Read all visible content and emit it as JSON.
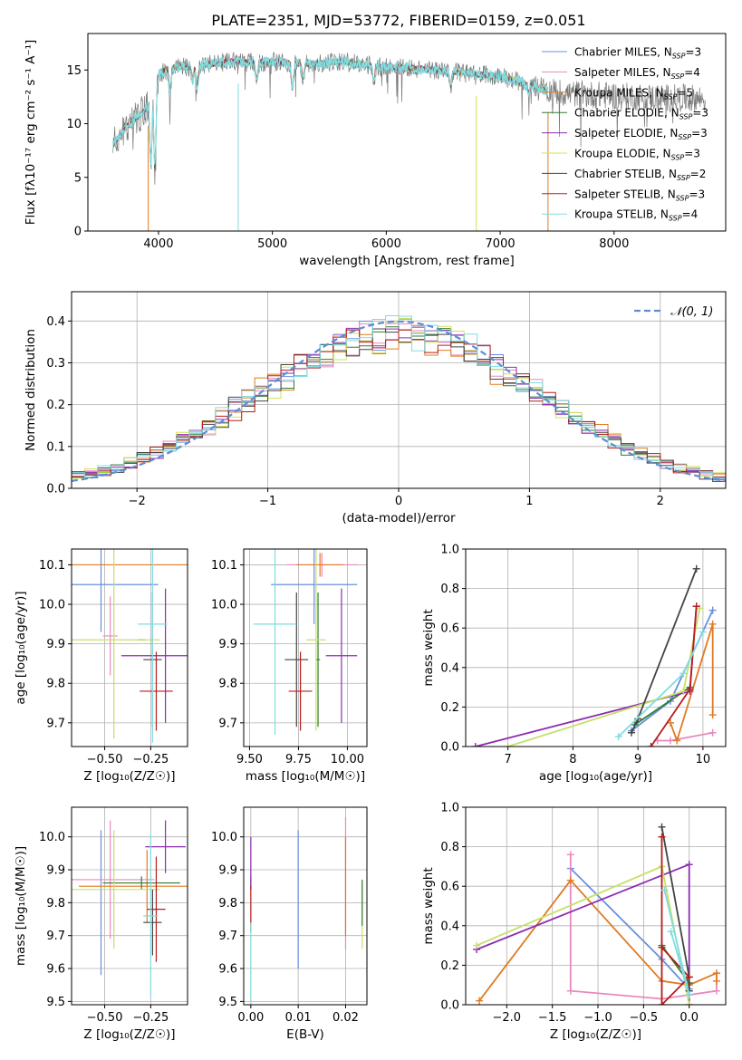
{
  "figure": {
    "title": "PLATE=2351, MJD=53772, FIBERID=0159, z=0.051"
  },
  "models": [
    {
      "name": "Chabrier MILES",
      "nssp": "3",
      "color": "#6a8fde"
    },
    {
      "name": "Salpeter MILES",
      "nssp": "4",
      "color": "#e889bf"
    },
    {
      "name": "Kroupa MILES",
      "nssp": "5",
      "color": "#e07b22"
    },
    {
      "name": "Chabrier ELODIE",
      "nssp": "3",
      "color": "#2e7d32"
    },
    {
      "name": "Salpeter ELODIE",
      "nssp": "3",
      "color": "#8e2bb0"
    },
    {
      "name": "Kroupa ELODIE",
      "nssp": "3",
      "color": "#d4e157"
    },
    {
      "name": "Chabrier STELIB",
      "nssp": "2",
      "color": "#444444"
    },
    {
      "name": "Salpeter STELIB",
      "nssp": "3",
      "color": "#b71c1c"
    },
    {
      "name": "Kroupa STELIB",
      "nssp": "4",
      "color": "#7fdde0"
    }
  ],
  "chart_data": [
    {
      "type": "line",
      "id": "spectrum",
      "title": "PLATE=2351, MJD=53772, FIBERID=0159, z=0.051",
      "xlabel": "wavelength [Angstrom, rest frame]",
      "ylabel": "Flux [fλ10⁻¹⁷ erg cm⁻² s⁻¹ A⁻¹]",
      "xlim": [
        3380,
        8980
      ],
      "ylim": [
        0,
        18.4
      ],
      "xticks": [
        4000,
        5000,
        6000,
        7000,
        8000
      ],
      "yticks": [
        0,
        5,
        10,
        15
      ],
      "legend": "top-right",
      "grid": false,
      "data_color": "#7a7a7a",
      "model_color": "#7fdde0",
      "continuum": [
        [
          3600,
          8.0
        ],
        [
          3700,
          9.5
        ],
        [
          3800,
          10.5
        ],
        [
          3900,
          11.5
        ],
        [
          3950,
          13.0
        ],
        [
          4000,
          14.6
        ],
        [
          4100,
          15.2
        ],
        [
          4200,
          15.3
        ],
        [
          4300,
          15.2
        ],
        [
          4400,
          15.5
        ],
        [
          4500,
          15.6
        ],
        [
          4600,
          15.8
        ],
        [
          4800,
          15.7
        ],
        [
          5000,
          15.8
        ],
        [
          5200,
          15.6
        ],
        [
          5400,
          15.6
        ],
        [
          5600,
          15.8
        ],
        [
          5800,
          15.5
        ],
        [
          6000,
          15.3
        ],
        [
          6200,
          15.2
        ],
        [
          6400,
          15.0
        ],
        [
          6600,
          14.8
        ],
        [
          6800,
          14.6
        ],
        [
          7000,
          14.4
        ],
        [
          7200,
          13.8
        ],
        [
          7400,
          13.1
        ],
        [
          7600,
          12.8
        ],
        [
          7800,
          12.7
        ],
        [
          8000,
          12.6
        ],
        [
          8200,
          12.5
        ],
        [
          8400,
          12.4
        ],
        [
          8600,
          12.4
        ],
        [
          8800,
          12.3
        ]
      ],
      "absorption": [
        [
          3933,
          6.0
        ],
        [
          3968,
          5.5
        ],
        [
          4101,
          13.0
        ],
        [
          4300,
          14.0
        ],
        [
          4340,
          13.5
        ],
        [
          4861,
          14.0
        ],
        [
          5175,
          13.3
        ],
        [
          5270,
          14.3
        ],
        [
          5890,
          13.8
        ],
        [
          6563,
          13.5
        ],
        [
          7250,
          12.8
        ]
      ],
      "model_cutoff": 7420,
      "spikes": [
        [
          3910,
          0
        ],
        [
          4700,
          0
        ],
        [
          6790,
          0
        ],
        [
          7420,
          0
        ]
      ]
    },
    {
      "type": "histogram",
      "id": "residuals",
      "xlabel": "(data-model)/error",
      "ylabel": "Normed distribution",
      "xlim": [
        -2.5,
        2.5
      ],
      "ylim": [
        0,
        0.47
      ],
      "xticks": [
        -2,
        -1,
        0,
        1,
        2
      ],
      "yticks": [
        0.0,
        0.1,
        0.2,
        0.3,
        0.4
      ],
      "bin_width": 0.1,
      "grid": true,
      "legend": "top-right",
      "gaussian": {
        "label": "𝒩(0, 1)",
        "color": "#5b8ed6",
        "mean": 0,
        "sigma": 1
      }
    },
    {
      "type": "scatter",
      "id": "age-vs-Z",
      "xlabel": "Z [log₁₀(Z/Z☉)]",
      "ylabel": "age  [log₁₀(age/yr)]",
      "xlim": [
        -0.68,
        -0.05
      ],
      "ylim": [
        9.64,
        10.14
      ],
      "xticks": [
        -0.5,
        -0.25
      ],
      "yticks": [
        9.7,
        9.8,
        9.9,
        10.0,
        10.1
      ],
      "grid": true,
      "points": [
        {
          "x": -0.52,
          "y": 10.05,
          "xerr": 0.31,
          "yerr": 0.12,
          "color": "#6a8fde"
        },
        {
          "x": -0.47,
          "y": 9.92,
          "xerr": 0.04,
          "yerr": 0.1,
          "color": "#e889bf"
        },
        {
          "x": -0.45,
          "y": 10.1,
          "xerr": 0.42,
          "yerr": 0.0,
          "color": "#e07b22"
        },
        {
          "x": -0.3,
          "y": 9.91,
          "xerr": 0.02,
          "yerr": 0.0,
          "color": "#2e7d32"
        },
        {
          "x": -0.17,
          "y": 9.87,
          "xerr": 0.24,
          "yerr": 0.17,
          "color": "#8e2bb0"
        },
        {
          "x": -0.45,
          "y": 9.91,
          "xerr": 0.25,
          "yerr": 0.25,
          "color": "#c6e06a"
        },
        {
          "x": -0.24,
          "y": 9.86,
          "xerr": 0.05,
          "yerr": 0.17,
          "color": "#444444"
        },
        {
          "x": -0.22,
          "y": 9.78,
          "xerr": 0.09,
          "yerr": 0.1,
          "color": "#b71c1c"
        },
        {
          "x": -0.24,
          "y": 9.95,
          "xerr": 0.08,
          "yerr": 0.3,
          "color": "#7fdde0"
        }
      ]
    },
    {
      "type": "scatter",
      "id": "age-vs-mass",
      "xlabel": "mass [log₁₀(M/M☉)]",
      "ylabel": "",
      "xlim": [
        9.47,
        10.1
      ],
      "ylim": [
        9.64,
        10.14
      ],
      "xticks": [
        9.5,
        9.75,
        10.0
      ],
      "yticks": [
        9.7,
        9.8,
        9.9,
        10.0,
        10.1
      ],
      "grid": true,
      "points": [
        {
          "x": 9.83,
          "y": 10.05,
          "xerr": 0.22,
          "yerr": 0.1,
          "color": "#6a8fde"
        },
        {
          "x": 9.87,
          "y": 10.1,
          "xerr": 0.18,
          "yerr": 0.03,
          "color": "#e889bf"
        },
        {
          "x": 9.86,
          "y": 10.1,
          "xerr": 0.12,
          "yerr": 0.03,
          "color": "#e07b22"
        },
        {
          "x": 9.85,
          "y": 9.86,
          "xerr": 0.01,
          "yerr": 0.17,
          "color": "#2e7d32"
        },
        {
          "x": 9.97,
          "y": 9.87,
          "xerr": 0.08,
          "yerr": 0.17,
          "color": "#8e2bb0"
        },
        {
          "x": 9.84,
          "y": 9.91,
          "xerr": 0.05,
          "yerr": 0.23,
          "color": "#c6e06a"
        },
        {
          "x": 9.74,
          "y": 9.86,
          "xerr": 0.06,
          "yerr": 0.17,
          "color": "#444444"
        },
        {
          "x": 9.76,
          "y": 9.78,
          "xerr": 0.06,
          "yerr": 0.1,
          "color": "#b71c1c"
        },
        {
          "x": 9.63,
          "y": 9.95,
          "xerr": 0.11,
          "yerr": 0.28,
          "color": "#7fdde0"
        }
      ]
    },
    {
      "type": "line",
      "id": "massweight-vs-age",
      "xlabel": "age  [log₁₀(age/yr)]",
      "ylabel": "mass weight",
      "xlim": [
        6.35,
        10.35
      ],
      "ylim": [
        0,
        1
      ],
      "xticks": [
        7,
        8,
        9,
        10
      ],
      "yticks": [
        0.0,
        0.2,
        0.4,
        0.6,
        0.8,
        1.0
      ],
      "grid": true,
      "series": [
        {
          "color": "#6a8fde",
          "x": [
            8.9,
            9.5,
            10.15
          ],
          "y": [
            0.08,
            0.23,
            0.69
          ]
        },
        {
          "color": "#e889bf",
          "x": [
            9.3,
            9.5,
            10.15
          ],
          "y": [
            0.03,
            0.03,
            0.07
          ]
        },
        {
          "color": "#e07b22",
          "x": [
            9.5,
            9.6,
            10.15,
            10.15
          ],
          "y": [
            0.12,
            0.03,
            0.62,
            0.16
          ]
        },
        {
          "color": "#2e7d32",
          "x": [
            8.95,
            9.8
          ],
          "y": [
            0.11,
            0.3
          ]
        },
        {
          "color": "#8e2bb0",
          "x": [
            6.5,
            9.8,
            9.9
          ],
          "y": [
            0.0,
            0.28,
            0.71
          ]
        },
        {
          "color": "#c6e06a",
          "x": [
            7.0,
            9.7,
            9.95
          ],
          "y": [
            0.0,
            0.28,
            0.7
          ]
        },
        {
          "color": "#444444",
          "x": [
            8.9,
            9.0,
            9.9
          ],
          "y": [
            0.07,
            0.14,
            0.9
          ]
        },
        {
          "color": "#b71c1c",
          "x": [
            9.2,
            9.8,
            9.9
          ],
          "y": [
            0.0,
            0.29,
            0.71
          ]
        },
        {
          "color": "#7fdde0",
          "x": [
            8.7,
            9.7,
            10.0
          ],
          "y": [
            0.05,
            0.37,
            0.58
          ]
        }
      ]
    },
    {
      "type": "scatter",
      "id": "mass-vs-Z",
      "xlabel": "Z [log₁₀(Z/Z☉)]",
      "ylabel": "mass [log₁₀(M/M☉)]",
      "xlim": [
        -0.68,
        -0.05
      ],
      "ylim": [
        9.49,
        10.09
      ],
      "xticks": [
        -0.5,
        -0.25
      ],
      "yticks": [
        9.5,
        9.6,
        9.7,
        9.8,
        9.9,
        10.0
      ],
      "grid": true,
      "points": [
        {
          "x": -0.52,
          "y": 9.8,
          "xerr": 0.0,
          "yerr": 0.22,
          "color": "#6a8fde"
        },
        {
          "x": -0.47,
          "y": 9.87,
          "xerr": 0.24,
          "yerr": 0.18,
          "color": "#e889bf"
        },
        {
          "x": -0.27,
          "y": 9.85,
          "xerr": 0.37,
          "yerr": 0.11,
          "color": "#e07b22"
        },
        {
          "x": -0.3,
          "y": 9.86,
          "xerr": 0.21,
          "yerr": 0.02,
          "color": "#2e7d32"
        },
        {
          "x": -0.17,
          "y": 9.97,
          "xerr": 0.11,
          "yerr": 0.08,
          "color": "#8e2bb0"
        },
        {
          "x": -0.45,
          "y": 9.84,
          "xerr": 0.25,
          "yerr": 0.18,
          "color": "#c6e06a"
        },
        {
          "x": -0.24,
          "y": 9.74,
          "xerr": 0.05,
          "yerr": 0.1,
          "color": "#444444"
        },
        {
          "x": -0.22,
          "y": 9.78,
          "xerr": 0.05,
          "yerr": 0.16,
          "color": "#b71c1c"
        },
        {
          "x": -0.25,
          "y": 9.76,
          "xerr": 0.04,
          "yerr": 0.25,
          "color": "#7fdde0"
        }
      ]
    },
    {
      "type": "scatter",
      "id": "mass-vs-EBV",
      "xlabel": "E(B-V)",
      "ylabel": "",
      "xlim": [
        -0.0015,
        0.0245
      ],
      "ylim": [
        9.49,
        10.09
      ],
      "xticks": [
        0.0,
        0.01,
        0.02
      ],
      "yticks": [
        9.5,
        9.6,
        9.7,
        9.8,
        9.9,
        10.0
      ],
      "grid": true,
      "points": [
        {
          "x": 0.01,
          "y": 9.81,
          "xerr": 0.0,
          "yerr": 0.21,
          "color": "#6a8fde"
        },
        {
          "x": 0.02,
          "y": 9.86,
          "xerr": 0.0,
          "yerr": 0.2,
          "color": "#e889bf"
        },
        {
          "x": 0.02,
          "y": 9.85,
          "xerr": 0.0,
          "yerr": 0.15,
          "color": "#e07b22"
        },
        {
          "x": 0.0,
          "y": 9.86,
          "xerr": 0.0,
          "yerr": 0.02,
          "color": "#2e7d32"
        },
        {
          "x": 0.0,
          "y": 9.92,
          "xerr": 0.0,
          "yerr": 0.08,
          "color": "#8e2bb0"
        },
        {
          "x": 0.0235,
          "y": 9.76,
          "xerr": 0.0,
          "yerr": 0.1,
          "color": "#c6e06a"
        },
        {
          "x": 0.0235,
          "y": 9.8,
          "xerr": 0.0,
          "yerr": 0.07,
          "color": "#2e7d32"
        },
        {
          "x": 0.0,
          "y": 9.78,
          "xerr": 0.0,
          "yerr": 0.07,
          "color": "#b71c1c"
        },
        {
          "x": 0.0,
          "y": 9.62,
          "xerr": 0.0,
          "yerr": 0.12,
          "color": "#7fdde0"
        }
      ]
    },
    {
      "type": "line",
      "id": "massweight-vs-Z",
      "xlabel": "Z [log₁₀(Z/Z☉)]",
      "ylabel": "mass weight",
      "xlim": [
        -2.45,
        0.4
      ],
      "ylim": [
        0,
        1
      ],
      "xticks": [
        -2.0,
        -1.5,
        -1.0,
        -0.5,
        0.0
      ],
      "yticks": [
        0.0,
        0.2,
        0.4,
        0.6,
        0.8,
        1.0
      ],
      "grid": true,
      "series": [
        {
          "color": "#6a8fde",
          "x": [
            -1.3,
            -0.3,
            0.0
          ],
          "y": [
            0.69,
            0.23,
            0.08
          ]
        },
        {
          "color": "#e889bf",
          "x": [
            -1.3,
            -1.3,
            -0.3,
            0.3,
            0.3
          ],
          "y": [
            0.76,
            0.07,
            0.03,
            0.07,
            0.16
          ]
        },
        {
          "color": "#e07b22",
          "x": [
            -2.3,
            -1.3,
            -0.3,
            0.0,
            0.3,
            0.3
          ],
          "y": [
            0.02,
            0.63,
            0.12,
            0.1,
            0.16,
            0.12
          ]
        },
        {
          "color": "#2e7d32",
          "x": [
            -0.3,
            0.0
          ],
          "y": [
            0.3,
            0.11
          ]
        },
        {
          "color": "#8e2bb0",
          "x": [
            -2.33,
            0.0,
            0.0
          ],
          "y": [
            0.28,
            0.71,
            0.0
          ]
        },
        {
          "color": "#c6e06a",
          "x": [
            -2.33,
            -0.3,
            0.0
          ],
          "y": [
            0.3,
            0.7,
            0.0
          ]
        },
        {
          "color": "#444444",
          "x": [
            -0.3,
            0.0,
            0.0
          ],
          "y": [
            0.9,
            0.14,
            0.07
          ]
        },
        {
          "color": "#b71c1c",
          "x": [
            -0.3,
            -0.3,
            0.0,
            -0.3
          ],
          "y": [
            0.85,
            0.0,
            0.14,
            0.29
          ]
        },
        {
          "color": "#7fdde0",
          "x": [
            -0.27,
            0.0,
            -0.2
          ],
          "y": [
            0.58,
            0.05,
            0.37
          ]
        }
      ]
    }
  ]
}
